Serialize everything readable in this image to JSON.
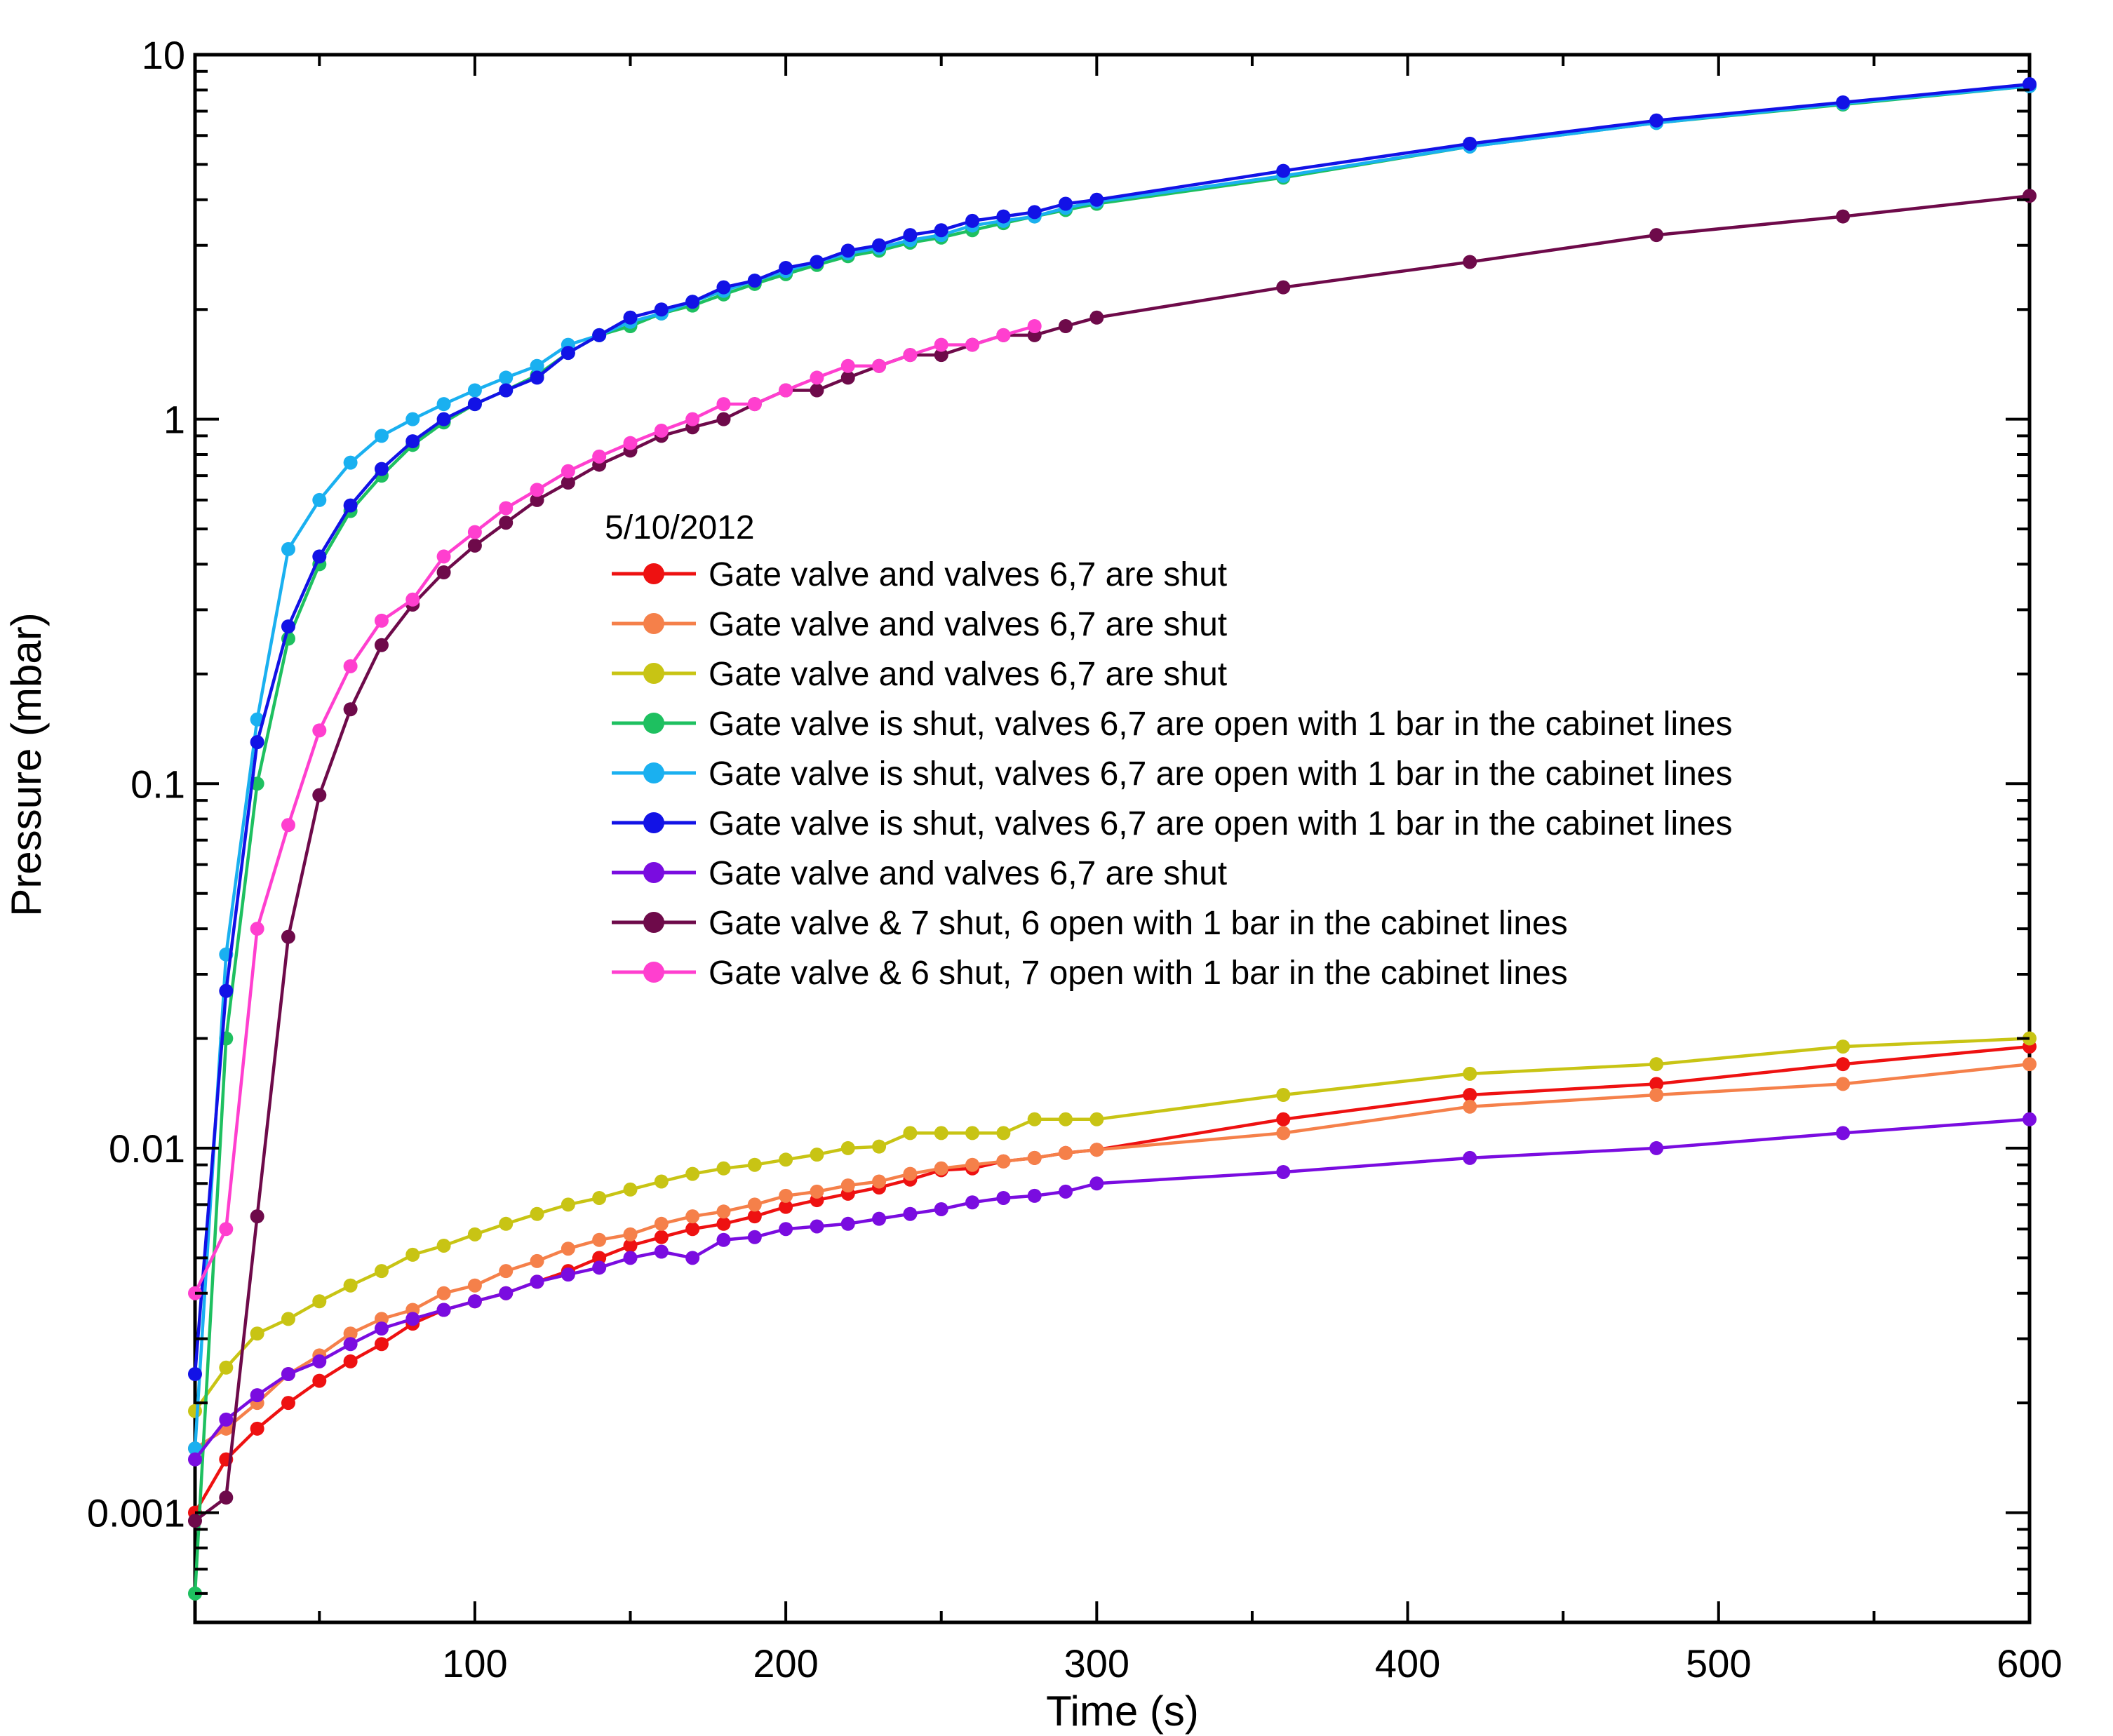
{
  "chart_data": {
    "type": "line",
    "title": "",
    "xlabel": "Time (s)",
    "ylabel": "Pressure (mbar)",
    "xlim": [
      10,
      600
    ],
    "ylim": [
      0.0005,
      10
    ],
    "yscale": "log",
    "xticks": [
      100,
      200,
      300,
      400,
      500,
      600
    ],
    "xtick_labels": [
      "100",
      "200",
      "300",
      "400",
      "500",
      "600"
    ],
    "yticks": [
      0.001,
      0.01,
      0.1,
      1,
      10
    ],
    "ytick_labels": [
      "0.001",
      "0.01",
      "0.1",
      "1",
      "10"
    ],
    "grid": false,
    "legend_title": "5/10/2012",
    "legend_position": "center",
    "series": [
      {
        "name": "Gate valve  and valves 6,7 are shut",
        "color": "#ee1111",
        "x": [
          10,
          20,
          30,
          40,
          50,
          60,
          70,
          80,
          90,
          100,
          110,
          120,
          130,
          140,
          150,
          160,
          170,
          180,
          190,
          200,
          210,
          220,
          230,
          240,
          250,
          260,
          270,
          280,
          290,
          300,
          360,
          420,
          480,
          540,
          600
        ],
        "y": [
          0.001,
          0.0014,
          0.0017,
          0.002,
          0.0023,
          0.0026,
          0.0029,
          0.0033,
          0.0036,
          0.0038,
          0.004,
          0.0043,
          0.0046,
          0.005,
          0.0054,
          0.0057,
          0.006,
          0.0062,
          0.0065,
          0.0069,
          0.0072,
          0.0075,
          0.0078,
          0.0082,
          0.0087,
          0.0088,
          0.0092,
          0.0094,
          0.0097,
          0.0099,
          0.012,
          0.014,
          0.015,
          0.017,
          0.019
        ]
      },
      {
        "name": "Gate valve  and valves 6,7 are shut",
        "color": "#f5804a",
        "x": [
          10,
          20,
          30,
          40,
          50,
          60,
          70,
          80,
          90,
          100,
          110,
          120,
          130,
          140,
          150,
          160,
          170,
          180,
          190,
          200,
          210,
          220,
          230,
          240,
          250,
          260,
          270,
          280,
          290,
          300,
          360,
          420,
          480,
          540,
          600
        ],
        "y": [
          0.0015,
          0.0017,
          0.002,
          0.0024,
          0.0027,
          0.0031,
          0.0034,
          0.0036,
          0.004,
          0.0042,
          0.0046,
          0.0049,
          0.0053,
          0.0056,
          0.0058,
          0.0062,
          0.0065,
          0.0067,
          0.007,
          0.0074,
          0.0076,
          0.0079,
          0.0081,
          0.0085,
          0.0088,
          0.009,
          0.0092,
          0.0094,
          0.0097,
          0.0099,
          0.011,
          0.013,
          0.014,
          0.015,
          0.017
        ]
      },
      {
        "name": "Gate valve  and valves 6,7 are shut",
        "color": "#c8c414",
        "x": [
          10,
          20,
          30,
          40,
          50,
          60,
          70,
          80,
          90,
          100,
          110,
          120,
          130,
          140,
          150,
          160,
          170,
          180,
          190,
          200,
          210,
          220,
          230,
          240,
          250,
          260,
          270,
          280,
          290,
          300,
          360,
          420,
          480,
          540,
          600
        ],
        "y": [
          0.0019,
          0.0025,
          0.0031,
          0.0034,
          0.0038,
          0.0042,
          0.0046,
          0.0051,
          0.0054,
          0.0058,
          0.0062,
          0.0066,
          0.007,
          0.0073,
          0.0077,
          0.0081,
          0.0085,
          0.0088,
          0.009,
          0.0093,
          0.0096,
          0.01,
          0.0101,
          0.011,
          0.011,
          0.011,
          0.011,
          0.012,
          0.012,
          0.012,
          0.014,
          0.016,
          0.017,
          0.019,
          0.02
        ]
      },
      {
        "name": "Gate valve is shut, valves 6,7 are open with 1 bar in the cabinet lines",
        "color": "#1ec060",
        "x": [
          10,
          20,
          30,
          40,
          50,
          60,
          70,
          80,
          90,
          100,
          110,
          120,
          130,
          140,
          150,
          160,
          170,
          180,
          190,
          200,
          210,
          220,
          230,
          240,
          250,
          260,
          270,
          280,
          290,
          300,
          360,
          420,
          480,
          540,
          600
        ],
        "y": [
          0.0006,
          0.02,
          0.1,
          0.25,
          0.4,
          0.56,
          0.7,
          0.85,
          0.98,
          1.1,
          1.2,
          1.32,
          1.52,
          1.7,
          1.8,
          1.95,
          2.05,
          2.2,
          2.35,
          2.5,
          2.65,
          2.8,
          2.9,
          3.05,
          3.15,
          3.3,
          3.45,
          3.6,
          3.75,
          3.9,
          4.6,
          5.6,
          6.5,
          7.3,
          8.2
        ]
      },
      {
        "name": "Gate valve is shut, valves 6,7 are open with 1 bar in the cabinet lines",
        "color": "#1ab0f0",
        "x": [
          10,
          20,
          30,
          40,
          50,
          60,
          70,
          80,
          90,
          100,
          110,
          120,
          130,
          140,
          150,
          160,
          170,
          180,
          190,
          200,
          210,
          220,
          230,
          240,
          250,
          260,
          270,
          280,
          290,
          300,
          360,
          420,
          480,
          540,
          600
        ],
        "y": [
          0.0015,
          0.034,
          0.15,
          0.44,
          0.6,
          0.76,
          0.9,
          1.0,
          1.1,
          1.2,
          1.3,
          1.4,
          1.6,
          1.7,
          1.85,
          1.95,
          2.1,
          2.25,
          2.4,
          2.55,
          2.7,
          2.85,
          2.95,
          3.1,
          3.2,
          3.4,
          3.5,
          3.6,
          3.8,
          3.95,
          4.65,
          5.6,
          6.5,
          7.35,
          8.2
        ]
      },
      {
        "name": "Gate valve is shut, valves 6,7 are open with 1 bar in the cabinet lines",
        "color": "#1212e6",
        "x": [
          10,
          20,
          30,
          40,
          50,
          60,
          70,
          80,
          90,
          100,
          110,
          120,
          130,
          140,
          150,
          160,
          170,
          180,
          190,
          200,
          210,
          220,
          230,
          240,
          250,
          260,
          270,
          280,
          290,
          300,
          360,
          420,
          480,
          540,
          600
        ],
        "y": [
          0.0024,
          0.027,
          0.13,
          0.27,
          0.42,
          0.58,
          0.73,
          0.87,
          1.0,
          1.1,
          1.2,
          1.3,
          1.52,
          1.7,
          1.9,
          2.0,
          2.1,
          2.3,
          2.4,
          2.6,
          2.7,
          2.9,
          3.0,
          3.2,
          3.3,
          3.5,
          3.6,
          3.7,
          3.9,
          4.0,
          4.8,
          5.7,
          6.6,
          7.4,
          8.3
        ]
      },
      {
        "name": "Gate valve  and valves 6,7 are shut",
        "color": "#7a0ce0",
        "x": [
          10,
          20,
          30,
          40,
          50,
          60,
          70,
          80,
          90,
          100,
          110,
          120,
          130,
          140,
          150,
          160,
          170,
          180,
          190,
          200,
          210,
          220,
          230,
          240,
          250,
          260,
          270,
          280,
          290,
          300,
          360,
          420,
          480,
          540,
          600
        ],
        "y": [
          0.0014,
          0.0018,
          0.0021,
          0.0024,
          0.0026,
          0.0029,
          0.0032,
          0.0034,
          0.0036,
          0.0038,
          0.004,
          0.0043,
          0.0045,
          0.0047,
          0.005,
          0.0052,
          0.005,
          0.0056,
          0.0057,
          0.006,
          0.0061,
          0.0062,
          0.0064,
          0.0066,
          0.0068,
          0.0071,
          0.0073,
          0.0074,
          0.0076,
          0.008,
          0.0086,
          0.0094,
          0.01,
          0.011,
          0.012
        ]
      },
      {
        "name": "Gate valve & 7 shut, 6 open with 1 bar in the cabinet lines",
        "color": "#6e0a4a",
        "x": [
          10,
          20,
          30,
          40,
          50,
          60,
          70,
          80,
          90,
          100,
          110,
          120,
          130,
          140,
          150,
          160,
          170,
          180,
          190,
          200,
          210,
          220,
          230,
          240,
          250,
          260,
          270,
          280,
          290,
          300,
          360,
          420,
          480,
          540,
          600
        ],
        "y": [
          0.00095,
          0.0011,
          0.0065,
          0.038,
          0.093,
          0.16,
          0.24,
          0.31,
          0.38,
          0.45,
          0.52,
          0.6,
          0.67,
          0.75,
          0.82,
          0.9,
          0.95,
          1.0,
          1.1,
          1.2,
          1.2,
          1.3,
          1.4,
          1.5,
          1.5,
          1.6,
          1.7,
          1.7,
          1.8,
          1.9,
          2.3,
          2.7,
          3.2,
          3.6,
          4.1
        ]
      },
      {
        "name": "Gate valve & 6 shut, 7 open with 1 bar in the cabinet lines",
        "color": "#ff3fcf",
        "x": [
          10,
          20,
          30,
          40,
          50,
          60,
          70,
          80,
          90,
          100,
          110,
          120,
          130,
          140,
          150,
          160,
          170,
          180,
          190,
          200,
          210,
          220,
          230,
          240,
          250,
          260,
          270,
          280
        ],
        "y": [
          0.004,
          0.006,
          0.04,
          0.077,
          0.14,
          0.21,
          0.28,
          0.32,
          0.42,
          0.49,
          0.57,
          0.64,
          0.72,
          0.79,
          0.86,
          0.93,
          1.0,
          1.1,
          1.1,
          1.2,
          1.3,
          1.4,
          1.4,
          1.5,
          1.6,
          1.6,
          1.7,
          1.8
        ]
      }
    ]
  }
}
